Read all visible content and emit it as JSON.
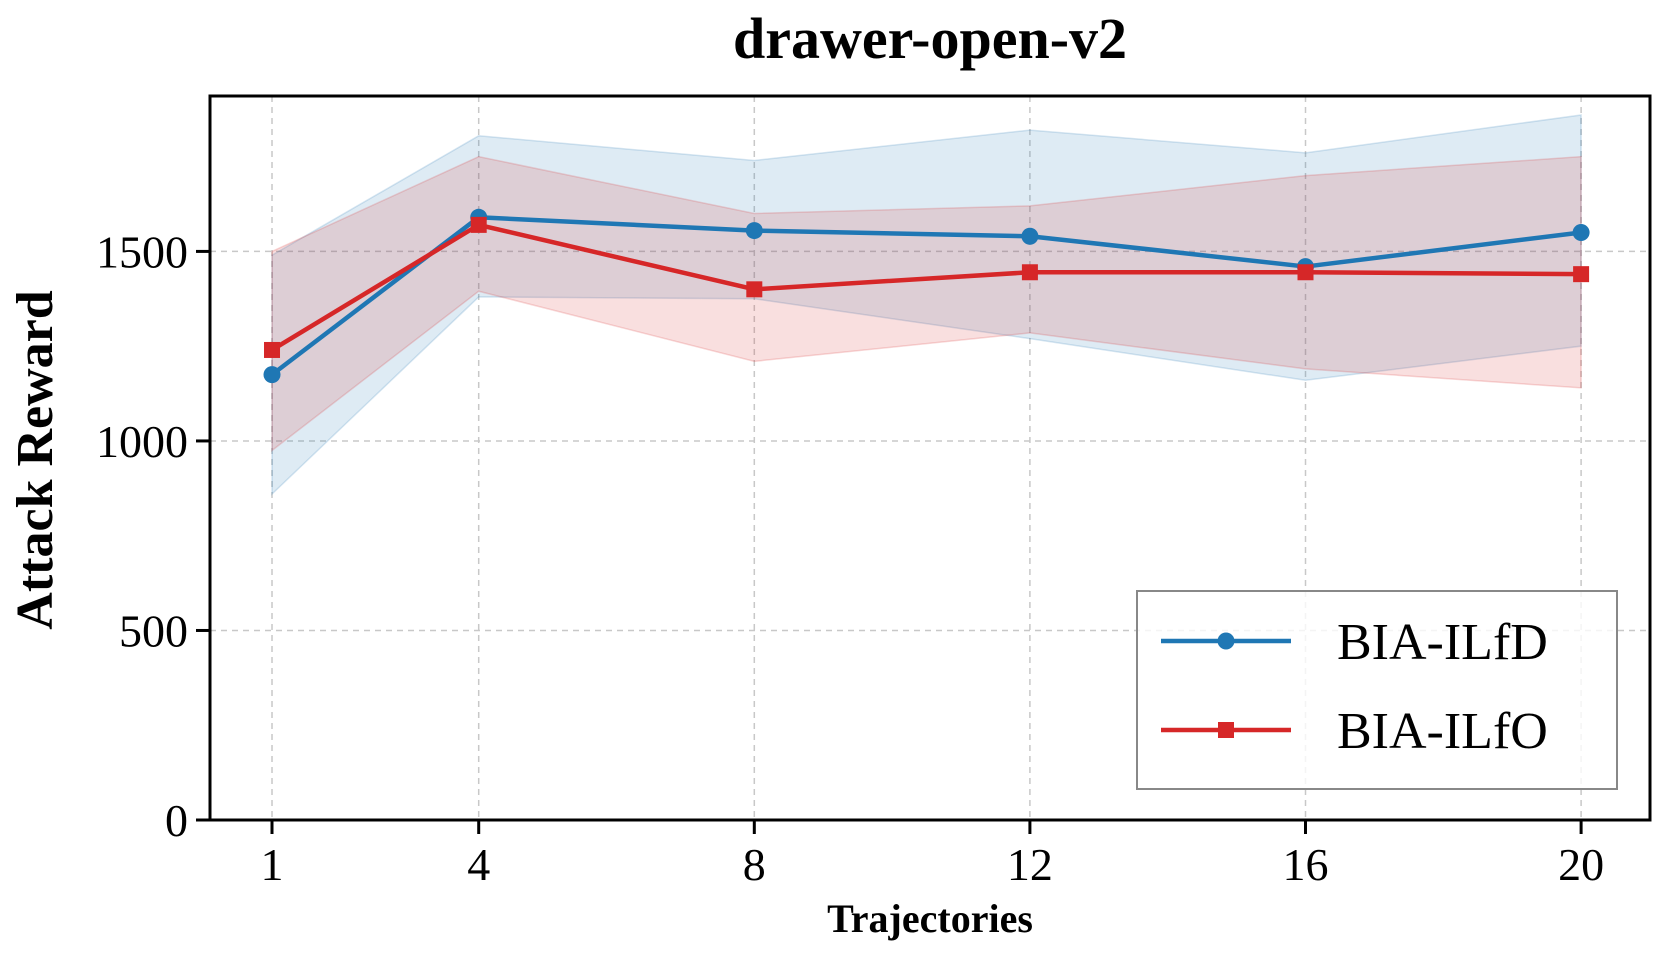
{
  "chart_data": {
    "type": "line",
    "title": "drawer-open-v2",
    "xlabel": "Trajectories",
    "ylabel": "Attack Reward",
    "x": [
      1,
      4,
      8,
      12,
      16,
      20
    ],
    "x_tick_labels": [
      "1",
      "4",
      "8",
      "12",
      "16",
      "20"
    ],
    "y_ticks": [
      0,
      500,
      1000,
      1500
    ],
    "y_tick_labels": [
      "0",
      "500",
      "1000",
      "1500"
    ],
    "ylim": [
      0,
      1910
    ],
    "xlim": [
      0.1,
      21
    ],
    "grid": true,
    "legend_position": "lower-right",
    "series": [
      {
        "name": "BIA-ILfD",
        "color": "#1f77b4",
        "marker": "circle",
        "values": [
          1175,
          1590,
          1555,
          1540,
          1460,
          1550
        ],
        "band_upper": [
          1490,
          1805,
          1740,
          1820,
          1760,
          1860
        ],
        "band_lower": [
          860,
          1380,
          1375,
          1270,
          1160,
          1250
        ]
      },
      {
        "name": "BIA-ILfO",
        "color": "#d62728",
        "marker": "square",
        "values": [
          1240,
          1570,
          1400,
          1445,
          1445,
          1440
        ],
        "band_upper": [
          1500,
          1750,
          1600,
          1620,
          1700,
          1750
        ],
        "band_lower": [
          975,
          1395,
          1210,
          1285,
          1190,
          1140
        ]
      }
    ]
  }
}
